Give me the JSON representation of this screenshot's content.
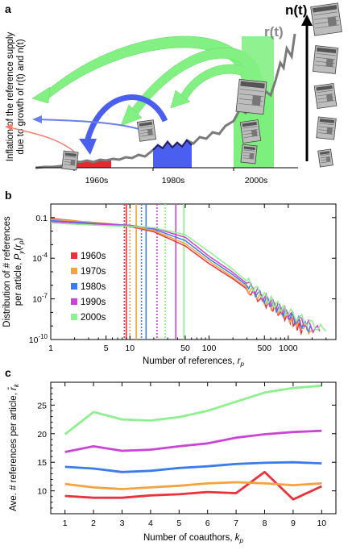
{
  "panel_a": {
    "label": "a",
    "n_label": "n(t)",
    "r_label": "r(t)",
    "ylabel_lines": [
      "Inflation of the reference supply",
      "due to growth of r(t) and n(t)"
    ],
    "decades": [
      "1960s",
      "1980s",
      "2000s"
    ],
    "colors": {
      "red": "#e8282c",
      "blue": "#4a5ff0",
      "green": "#7df07d",
      "gray": "#7a7a7a"
    }
  },
  "panel_b": {
    "label": "b",
    "chart_data": {
      "type": "line",
      "xlabel": "Number of references, r_p",
      "ylabel_lines": [
        "Distribution of # references",
        "per article, P_y(r_p)"
      ],
      "xscale": "log",
      "yscale": "log",
      "xlim": [
        1,
        4000
      ],
      "ylim": [
        1e-10,
        1
      ],
      "x_ticks": [
        "1",
        "5",
        "10",
        "50",
        "100",
        "500",
        "1000"
      ],
      "y_ticks": [
        "0.1",
        "10^-4",
        "10^-7",
        "10^-10"
      ],
      "legend_position": "left",
      "series": [
        {
          "name": "1960s",
          "color": "#e8333a",
          "mean": 9,
          "median": 8.5,
          "points": [
            [
              1,
              0.085
            ],
            [
              5,
              0.035
            ],
            [
              10,
              0.022
            ],
            [
              20,
              0.009
            ],
            [
              50,
              0.0008
            ],
            [
              100,
              4e-05
            ],
            [
              200,
              3e-06
            ],
            [
              500,
              6e-08
            ],
            [
              1000,
              4e-09
            ],
            [
              1500,
              5e-10
            ]
          ]
        },
        {
          "name": "1970s",
          "color": "#f5a340",
          "mean": 12,
          "median": 10,
          "points": [
            [
              1,
              0.075
            ],
            [
              5,
              0.038
            ],
            [
              10,
              0.025
            ],
            [
              20,
              0.011
            ],
            [
              50,
              0.0012
            ],
            [
              100,
              6e-05
            ],
            [
              200,
              4e-06
            ],
            [
              500,
              8e-08
            ],
            [
              1000,
              5e-09
            ],
            [
              2000,
              4e-10
            ]
          ]
        },
        {
          "name": "1980s",
          "color": "#3b7de8",
          "mean": 16,
          "median": 14,
          "points": [
            [
              1,
              0.06
            ],
            [
              5,
              0.034
            ],
            [
              10,
              0.027
            ],
            [
              20,
              0.014
            ],
            [
              50,
              0.002
            ],
            [
              100,
              9e-05
            ],
            [
              200,
              6e-06
            ],
            [
              500,
              1e-07
            ],
            [
              1000,
              6e-09
            ],
            [
              2000,
              5e-10
            ]
          ]
        },
        {
          "name": "1990s",
          "color": "#cc44d6",
          "mean": 38,
          "median": 22,
          "points": [
            [
              1,
              0.05
            ],
            [
              5,
              0.03
            ],
            [
              10,
              0.026
            ],
            [
              20,
              0.017
            ],
            [
              50,
              0.0035
            ],
            [
              100,
              0.00014
            ],
            [
              200,
              9e-06
            ],
            [
              500,
              1.2e-07
            ],
            [
              1000,
              8e-09
            ],
            [
              2500,
              4e-10
            ]
          ]
        },
        {
          "name": "2000s",
          "color": "#8ef08e",
          "mean": 48,
          "median": 28,
          "points": [
            [
              1,
              0.04
            ],
            [
              5,
              0.025
            ],
            [
              10,
              0.023
            ],
            [
              20,
              0.018
            ],
            [
              50,
              0.0055
            ],
            [
              100,
              0.0003
            ],
            [
              200,
              1.5e-05
            ],
            [
              500,
              1.5e-07
            ],
            [
              1000,
              1e-08
            ],
            [
              3000,
              4e-10
            ]
          ]
        }
      ]
    }
  },
  "panel_c": {
    "label": "c",
    "chart_data": {
      "type": "line",
      "xlabel": "Number of coauthors, k_p",
      "ylabel": "Ave. # references per article, r̄_k",
      "xlim": [
        0.5,
        10.5
      ],
      "ylim": [
        6,
        29
      ],
      "x_ticks": [
        1,
        2,
        3,
        4,
        5,
        6,
        7,
        8,
        9,
        10
      ],
      "y_ticks": [
        10,
        15,
        20,
        25
      ],
      "x": [
        1,
        2,
        3,
        4,
        5,
        6,
        7,
        8,
        9,
        10
      ],
      "series": [
        {
          "name": "1960s",
          "color": "#e8333a",
          "values": [
            9.1,
            8.8,
            8.8,
            9.2,
            9.4,
            9.8,
            9.6,
            13.3,
            8.5,
            10.8
          ]
        },
        {
          "name": "1970s",
          "color": "#f5a340",
          "values": [
            11.2,
            10.6,
            10.3,
            10.6,
            10.9,
            11.3,
            11.5,
            11.3,
            11.0,
            11.3
          ]
        },
        {
          "name": "1980s",
          "color": "#3b7de8",
          "values": [
            14.2,
            13.9,
            13.3,
            13.5,
            14.0,
            14.3,
            14.7,
            14.9,
            15.0,
            14.8
          ]
        },
        {
          "name": "1990s",
          "color": "#cc44d6",
          "values": [
            16.8,
            17.8,
            17.0,
            17.2,
            17.8,
            18.3,
            19.3,
            19.9,
            20.3,
            20.5
          ]
        },
        {
          "name": "2000s",
          "color": "#8ef08e",
          "values": [
            19.9,
            23.8,
            22.5,
            22.3,
            22.9,
            24.0,
            25.6,
            27.2,
            28.0,
            28.4
          ]
        }
      ]
    }
  }
}
